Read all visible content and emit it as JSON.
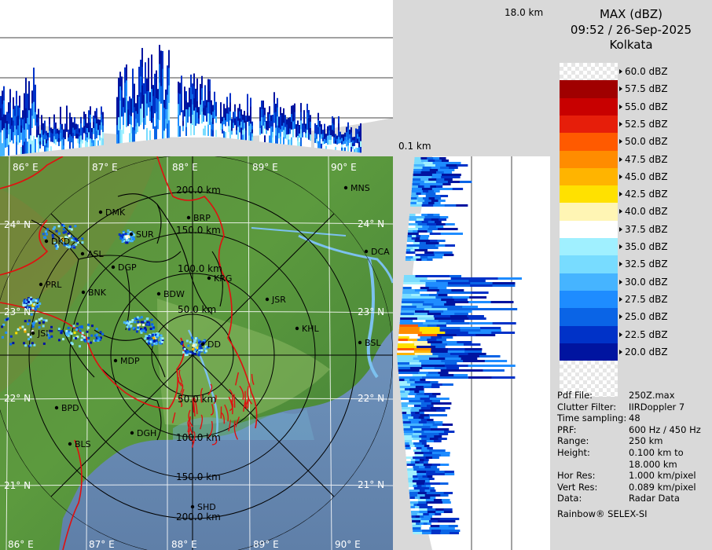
{
  "header": {
    "top_height_label": "18.0 km",
    "bottom_height_label": "0.1 km"
  },
  "panel": {
    "title": "MAX (dBZ)",
    "datetime": "09:52 / 26-Sep-2025",
    "station": "Kolkata"
  },
  "legend": {
    "bins": [
      {
        "label": "60.0 dBZ",
        "color": "checker"
      },
      {
        "label": "57.5 dBZ",
        "color": "#a00000"
      },
      {
        "label": "55.0 dBZ",
        "color": "#c80000"
      },
      {
        "label": "52.5 dBZ",
        "color": "#e61e0a"
      },
      {
        "label": "50.0 dBZ",
        "color": "#ff5a00"
      },
      {
        "label": "47.5 dBZ",
        "color": "#ff8c00"
      },
      {
        "label": "45.0 dBZ",
        "color": "#ffb400"
      },
      {
        "label": "42.5 dBZ",
        "color": "#ffe100"
      },
      {
        "label": "40.0 dBZ",
        "color": "#fff5b4"
      },
      {
        "label": "37.5 dBZ",
        "color": "#ffffff"
      },
      {
        "label": "35.0 dBZ",
        "color": "#a0f0ff"
      },
      {
        "label": "32.5 dBZ",
        "color": "#78dcff"
      },
      {
        "label": "30.0 dBZ",
        "color": "#46b4ff"
      },
      {
        "label": "27.5 dBZ",
        "color": "#1e8cff"
      },
      {
        "label": "25.0 dBZ",
        "color": "#0a64e6"
      },
      {
        "label": "22.5 dBZ",
        "color": "#0032c8"
      },
      {
        "label": "20.0 dBZ",
        "color": "#0014a0"
      }
    ]
  },
  "info": [
    {
      "key": "Pdf File:",
      "value": "250Z.max"
    },
    {
      "key": "Clutter Filter:",
      "value": "IIRDoppler 7"
    },
    {
      "key": "Time sampling:",
      "value": "48"
    },
    {
      "key": "PRF:",
      "value": "600 Hz / 450 Hz"
    },
    {
      "key": "Range:",
      "value": "250 km"
    },
    {
      "key": "Height:",
      "value": "0.100 km to"
    },
    {
      "key": "",
      "value": "18.000 km"
    },
    {
      "key": "Hor Res:",
      "value": "1.000 km/pixel"
    },
    {
      "key": "Vert Res:",
      "value": "0.089 km/pixel"
    },
    {
      "key": "Data:",
      "value": "Radar Data"
    }
  ],
  "footer": "Rainbow® SELEX-SI",
  "map": {
    "lon_labels_top": [
      "86° E",
      "87° E",
      "88° E",
      "89° E",
      "90° E"
    ],
    "lon_labels_bottom": [
      "86° E",
      "87° E",
      "88° E",
      "89° E",
      "90° E"
    ],
    "lat_labels_left": [
      "24° N",
      "23° N",
      "22° N",
      "21° N"
    ],
    "lat_labels_right": [
      "24° N",
      "23° N",
      "22° N",
      "21° N"
    ],
    "range_rings": [
      "50.0 km",
      "100.0 km",
      "150.0 km",
      "200.0 km"
    ],
    "range_rings_south": [
      "50.0 km",
      "100.0 km",
      "150.0 km",
      "200.0 km"
    ],
    "cities": [
      {
        "name": "MNS"
      },
      {
        "name": "DMK"
      },
      {
        "name": "BRP"
      },
      {
        "name": "DKD"
      },
      {
        "name": "SUR"
      },
      {
        "name": "ASL"
      },
      {
        "name": "DGP"
      },
      {
        "name": "KRG"
      },
      {
        "name": "DCA"
      },
      {
        "name": "PRL"
      },
      {
        "name": "BNK"
      },
      {
        "name": "BDW"
      },
      {
        "name": "JSR"
      },
      {
        "name": "KHL"
      },
      {
        "name": "JSI"
      },
      {
        "name": "DD"
      },
      {
        "name": "BSL"
      },
      {
        "name": "MDP"
      },
      {
        "name": "BPD"
      },
      {
        "name": "DGH"
      },
      {
        "name": "BLS"
      },
      {
        "name": "SHD"
      }
    ]
  }
}
